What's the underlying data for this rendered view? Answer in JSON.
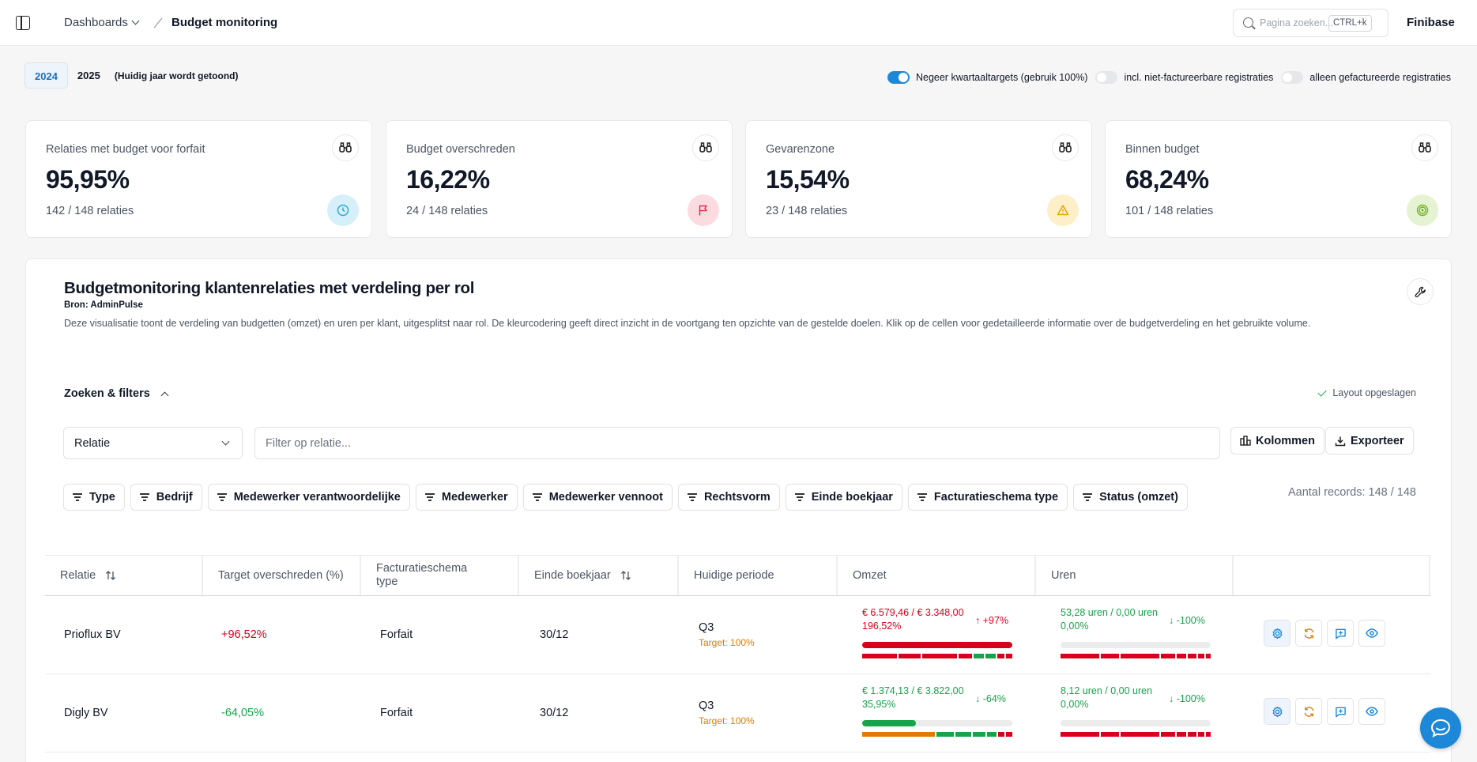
{
  "header": {
    "breadcrumb_parent": "Dashboards",
    "breadcrumb_current": "Budget monitoring",
    "search_placeholder": "Pagina zoeken...",
    "search_shortcut": "CTRL+k",
    "org_name": "Finibase"
  },
  "years": {
    "options": [
      "2024",
      "2025"
    ],
    "active": "2024",
    "note": "(Huidig jaar wordt getoond)"
  },
  "toggles": [
    {
      "label": "Negeer kwartaaltargets (gebruik 100%)",
      "on": true
    },
    {
      "label": "incl. niet-factureerbare registraties",
      "on": false
    },
    {
      "label": "alleen gefactureerde registraties",
      "on": false
    }
  ],
  "kpis": [
    {
      "label": "Relaties met budget voor forfait",
      "value": "95,95%",
      "sub": "142 / 148 relaties",
      "icon": "clock-icon",
      "color": "#2ba9d6",
      "bg": "#d6f0fa"
    },
    {
      "label": "Budget overschreden",
      "value": "16,22%",
      "sub": "24 / 148 relaties",
      "icon": "flag-icon",
      "color": "#d9304a",
      "bg": "#fbdbe0"
    },
    {
      "label": "Gevarenzone",
      "value": "15,54%",
      "sub": "23 / 148 relaties",
      "icon": "warning-icon",
      "color": "#e8a300",
      "bg": "#fdf0c9"
    },
    {
      "label": "Binnen budget",
      "value": "68,24%",
      "sub": "101 / 148 relaties",
      "icon": "target-icon",
      "color": "#6ab324",
      "bg": "#e5f3d3"
    }
  ],
  "panel": {
    "title": "Budgetmonitoring klantenrelaties met verdeling per rol",
    "source": "Bron: AdminPulse",
    "description": "Deze visualisatie toont de verdeling van budgetten (omzet) en uren per klant, uitgesplitst naar rol. De kleurcodering geeft direct inzicht in de voortgang ten opzichte van de gestelde doelen. Klik op de cellen voor gedetailleerde informatie over de budgetverdeling en het gebruikte volume.",
    "filters_heading": "Zoeken & filters",
    "layout_saved": "Layout opgeslagen",
    "select_value": "Relatie",
    "filter_placeholder": "Filter op relatie...",
    "columns_btn": "Kolommen",
    "export_btn": "Exporteer",
    "chips": [
      "Type",
      "Bedrijf",
      "Medewerker verantwoordelijke",
      "Medewerker",
      "Medewerker vennoot",
      "Rechtsvorm",
      "Einde boekjaar",
      "Facturatieschema type",
      "Status (omzet)"
    ],
    "records": "Aantal records: 148 / 148"
  },
  "table": {
    "headers": [
      "Relatie",
      "Target overschreden (%)",
      "Facturatieschema type",
      "Einde boekjaar",
      "Huidige periode",
      "Omzet",
      "Uren"
    ],
    "rows": [
      {
        "relatie": "Prioflux BV",
        "target": "+96,52%",
        "target_dir": "pos",
        "schema": "Forfait",
        "einde": "30/12",
        "period": "Q3",
        "period_target": "Target: 100%",
        "omzet_l1": "€ 6.579,46 / € 3.348,00",
        "omzet_l2": "196,52%",
        "omzet_delta": "+97%",
        "omzet_color": "red",
        "omzet_fill": 1.0,
        "omzet_fill_color": "#d9001b",
        "uren_l1": "53,28 uren / 0,00 uren",
        "uren_l2": "0,00%",
        "uren_delta": "-100%",
        "uren_color": "green",
        "uren_fill": 0.0
      },
      {
        "relatie": "Digly BV",
        "target": "-64,05%",
        "target_dir": "neg",
        "schema": "Forfait",
        "einde": "30/12",
        "period": "Q3",
        "period_target": "Target: 100%",
        "omzet_l1": "€ 1.374,13 / € 3.822,00",
        "omzet_l2": "35,95%",
        "omzet_delta": "-64%",
        "omzet_color": "green",
        "omzet_fill": 0.3595,
        "omzet_fill_color": "#16a34a",
        "uren_l1": "8,12 uren / 0,00 uren",
        "uren_l2": "0,00%",
        "uren_delta": "-100%",
        "uren_color": "green",
        "uren_fill": 0.0
      }
    ]
  }
}
